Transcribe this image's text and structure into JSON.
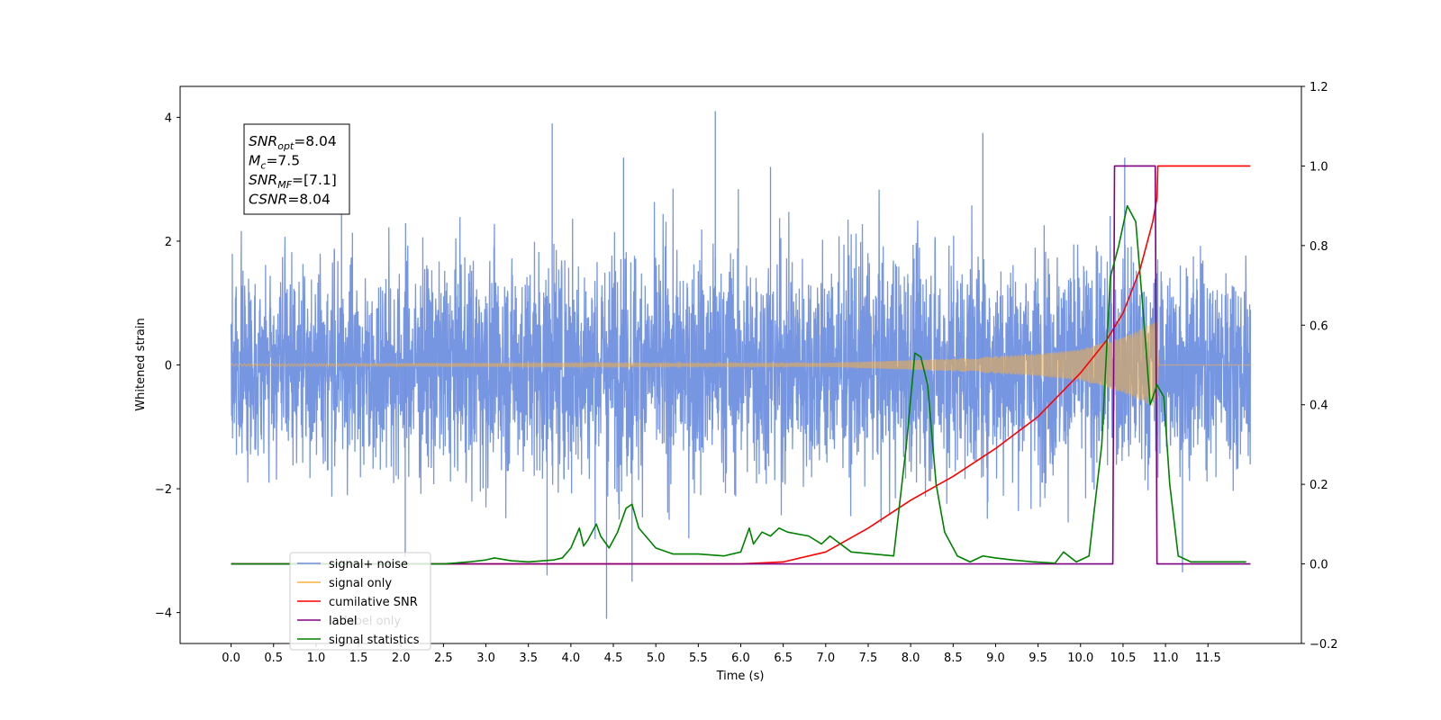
{
  "chart_data": {
    "type": "line",
    "title": "",
    "xlabel": "Time (s)",
    "ylabel": "Whitened strain",
    "y2label": "",
    "xlim": [
      -0.6,
      12.6
    ],
    "ylim": [
      -4.5,
      4.5
    ],
    "y2lim": [
      -0.2,
      1.2
    ],
    "x_ticks": [
      0.0,
      0.5,
      1.0,
      1.5,
      2.0,
      2.5,
      3.0,
      3.5,
      4.0,
      4.5,
      5.0,
      5.5,
      6.0,
      6.5,
      7.0,
      7.5,
      8.0,
      8.5,
      9.0,
      9.5,
      10.0,
      10.5,
      11.0,
      11.5
    ],
    "x_tick_labels": [
      "0.0",
      "0.5",
      "1.0",
      "1.5",
      "2.0",
      "2.5",
      "3.0",
      "3.5",
      "4.0",
      "4.5",
      "5.0",
      "5.5",
      "6.0",
      "6.5",
      "7.0",
      "7.5",
      "8.0",
      "8.5",
      "9.0",
      "9.5",
      "10.0",
      "10.5",
      "11.0",
      "11.5"
    ],
    "y_ticks": [
      4,
      2,
      0,
      -2,
      -4
    ],
    "y_tick_labels": [
      "4",
      "2",
      "0",
      "−2",
      "−4"
    ],
    "y2_ticks": [
      1.2,
      1.0,
      0.8,
      0.6,
      0.4,
      0.2,
      0.0,
      -0.2
    ],
    "y2_tick_labels": [
      "1.2",
      "1.0",
      "0.8",
      "0.6",
      "0.4",
      "0.2",
      "0.0",
      "−0.2"
    ],
    "grid": false,
    "legend_position": "bottom-left",
    "annotation": {
      "lines": [
        {
          "main": "SNR",
          "sub": "opt",
          "rest": "=8.04"
        },
        {
          "main": "M",
          "sub": "c",
          "rest": "=7.5"
        },
        {
          "main": "SNR",
          "sub": "MF",
          "rest": "=[7.1]"
        },
        {
          "main": "CSNR",
          "sub": "",
          "rest": "=8.04"
        }
      ]
    },
    "legend": [
      {
        "label": "signal+ noise",
        "color": "#7090e0"
      },
      {
        "label": "signal only",
        "color": "#f5b041"
      },
      {
        "label": "cumilative SNR",
        "color": "#ff0000"
      },
      {
        "label": "label",
        "color": "#800080"
      },
      {
        "label": "signal statistics",
        "color": "#008000"
      }
    ],
    "legend_hidden_text": "label only",
    "series": [
      {
        "name": "signal+ noise",
        "axis": "left",
        "color": "#7090e0",
        "kind": "noise",
        "x_range": [
          0.0,
          12.0
        ],
        "envelope": [
          [
            0.0,
            1.9
          ],
          [
            3.0,
            2.3
          ],
          [
            6.0,
            2.4
          ],
          [
            10.0,
            2.3
          ],
          [
            12.0,
            2.0
          ]
        ],
        "peaks": [
          {
            "x": 3.78,
            "y": 3.9
          },
          {
            "x": 5.7,
            "y": 4.1
          },
          {
            "x": 4.62,
            "y": 3.35
          },
          {
            "x": 8.85,
            "y": 3.75
          },
          {
            "x": 10.52,
            "y": 3.35
          },
          {
            "x": 4.42,
            "y": -4.1
          },
          {
            "x": 4.72,
            "y": -3.5
          },
          {
            "x": 3.72,
            "y": -3.4
          },
          {
            "x": 11.2,
            "y": -3.35
          },
          {
            "x": 2.05,
            "y": -3.1
          },
          {
            "x": 6.35,
            "y": 3.2
          },
          {
            "x": 1.3,
            "y": 3.1
          }
        ]
      },
      {
        "name": "signal only",
        "axis": "left",
        "color": "#f5b041",
        "kind": "chirp",
        "x_range": [
          0.0,
          12.0
        ],
        "amplitude": [
          [
            0.0,
            0.02
          ],
          [
            7.0,
            0.03
          ],
          [
            8.5,
            0.1
          ],
          [
            9.5,
            0.18
          ],
          [
            10.0,
            0.25
          ],
          [
            10.5,
            0.45
          ],
          [
            10.9,
            0.7
          ],
          [
            10.92,
            0.0
          ],
          [
            12.0,
            0.0
          ]
        ]
      },
      {
        "name": "cumilative SNR",
        "axis": "right",
        "color": "#ff0000",
        "x": [
          0.0,
          6.0,
          6.5,
          7.0,
          7.5,
          8.0,
          8.5,
          9.0,
          9.5,
          10.0,
          10.3,
          10.5,
          10.7,
          10.85,
          10.9,
          10.91,
          12.0
        ],
        "y": [
          0.0,
          0.0,
          0.005,
          0.03,
          0.09,
          0.16,
          0.22,
          0.29,
          0.37,
          0.48,
          0.56,
          0.63,
          0.74,
          0.86,
          0.92,
          1.0,
          1.0
        ]
      },
      {
        "name": "label",
        "axis": "right",
        "color": "#800080",
        "x": [
          0.0,
          10.38,
          10.4,
          10.88,
          10.9,
          12.0
        ],
        "y": [
          0.0,
          0.0,
          1.0,
          1.0,
          0.0,
          0.0
        ]
      },
      {
        "name": "signal statistics",
        "axis": "right",
        "color": "#008000",
        "x": [
          0.0,
          2.5,
          2.8,
          3.0,
          3.1,
          3.3,
          3.5,
          3.8,
          3.9,
          4.0,
          4.1,
          4.15,
          4.2,
          4.3,
          4.35,
          4.45,
          4.55,
          4.65,
          4.72,
          4.8,
          5.0,
          5.2,
          5.5,
          5.8,
          6.0,
          6.05,
          6.1,
          6.15,
          6.25,
          6.35,
          6.45,
          6.55,
          6.8,
          6.95,
          7.05,
          7.3,
          7.8,
          7.95,
          8.05,
          8.12,
          8.2,
          8.3,
          8.4,
          8.55,
          8.7,
          8.85,
          9.0,
          9.2,
          9.45,
          9.7,
          9.8,
          9.95,
          10.1,
          10.25,
          10.35,
          10.45,
          10.55,
          10.65,
          10.75,
          10.82,
          10.9,
          10.98,
          11.05,
          11.15,
          11.3,
          11.95
        ],
        "y": [
          0.0,
          0.0,
          0.005,
          0.01,
          0.015,
          0.008,
          0.005,
          0.01,
          0.015,
          0.04,
          0.09,
          0.045,
          0.06,
          0.1,
          0.07,
          0.04,
          0.08,
          0.14,
          0.15,
          0.09,
          0.04,
          0.025,
          0.025,
          0.02,
          0.03,
          0.06,
          0.09,
          0.05,
          0.08,
          0.07,
          0.09,
          0.08,
          0.07,
          0.05,
          0.07,
          0.03,
          0.02,
          0.3,
          0.53,
          0.52,
          0.45,
          0.2,
          0.08,
          0.02,
          0.005,
          0.02,
          0.015,
          0.01,
          0.005,
          0.002,
          0.03,
          0.005,
          0.02,
          0.3,
          0.72,
          0.8,
          0.9,
          0.86,
          0.6,
          0.4,
          0.45,
          0.42,
          0.2,
          0.02,
          0.005,
          0.005
        ]
      }
    ]
  }
}
